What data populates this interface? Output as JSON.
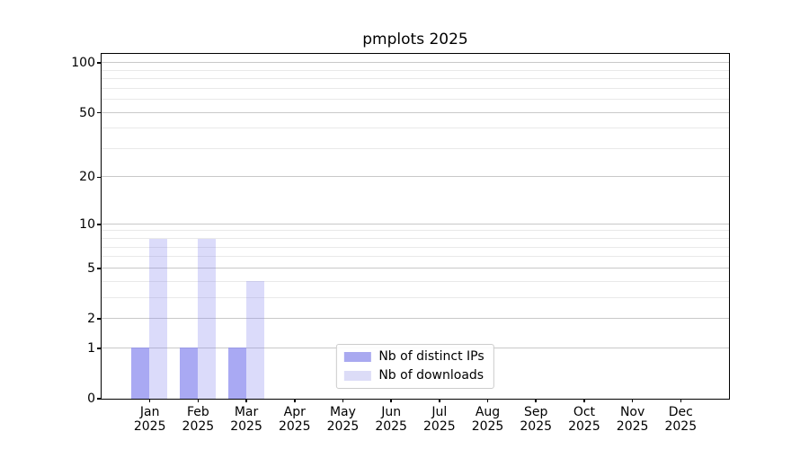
{
  "chart_data": {
    "type": "bar",
    "title": "pmplots 2025",
    "categories": [
      "Jan",
      "Feb",
      "Mar",
      "Apr",
      "May",
      "Jun",
      "Jul",
      "Aug",
      "Sep",
      "Oct",
      "Nov",
      "Dec"
    ],
    "year_label": "2025",
    "series": [
      {
        "name": "Nb of distinct IPs",
        "base_color": "#8888ee",
        "opacity": 0.72,
        "swatch_color": "#a9a9f0",
        "values": [
          1,
          1,
          1,
          0,
          0,
          0,
          0,
          0,
          0,
          0,
          0,
          0
        ]
      },
      {
        "name": "Nb of downloads",
        "base_color": "#8888ee",
        "opacity": 0.3,
        "swatch_color": "#dcdcf7",
        "values": [
          8,
          8,
          4,
          0,
          0,
          0,
          0,
          0,
          0,
          0,
          0,
          0
        ]
      }
    ],
    "y_axis": {
      "scale": "log1p",
      "ylim": [
        0,
        114
      ],
      "major_ticks": [
        0,
        1,
        2,
        5,
        10,
        20,
        50,
        100
      ],
      "minor_ticks": [
        3,
        4,
        6,
        7,
        8,
        9,
        30,
        40,
        60,
        70,
        80,
        90
      ]
    },
    "grid": true,
    "legend_position": "lower center",
    "colors": {
      "major_grid": "#c9c9c9",
      "minor_grid": "#e9e9e9",
      "spine": "#000000",
      "legend_border": "#cccccc"
    }
  }
}
